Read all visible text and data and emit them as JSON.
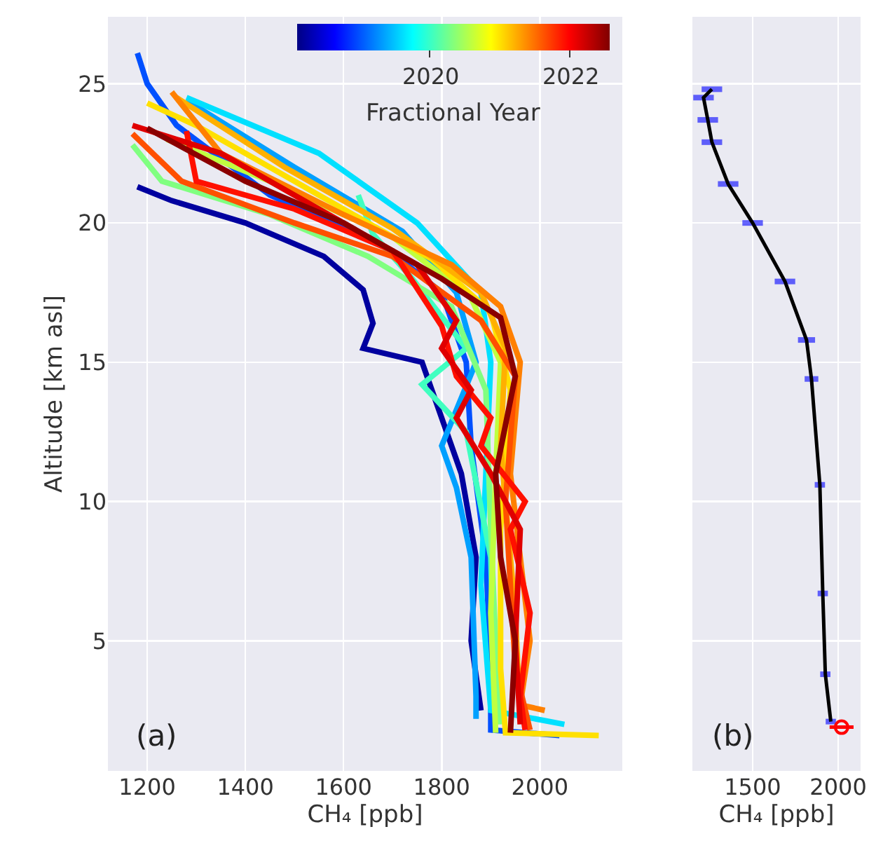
{
  "chart_data": [
    {
      "type": "line",
      "xlabel": "CH₄ [ppb]",
      "ylabel": "Altitude [km asl]",
      "xlim": [
        1120,
        2168
      ],
      "xticks": [
        1200,
        1400,
        1600,
        1800,
        2000
      ],
      "ylim": [
        0.33,
        27.4
      ],
      "yticks": [
        5,
        10,
        15,
        20,
        25
      ],
      "grid": true,
      "annotations": [
        "(a)",
        "2020",
        "2022",
        "Fractional Year"
      ],
      "series": [
        {
          "color": "#00009f",
          "x": [
            1180,
            1250,
            1400,
            1560,
            1640,
            1660,
            1640,
            1760,
            1780,
            1840,
            1870,
            1860,
            1880
          ],
          "values": [
            21.3,
            20.8,
            20.0,
            18.8,
            17.6,
            16.4,
            15.5,
            15.0,
            14,
            11,
            8,
            5,
            2.5
          ]
        },
        {
          "color": "#0050ff",
          "x": [
            1180,
            1200,
            1260,
            1450,
            1680,
            1800,
            1850,
            1860,
            1890,
            1900,
            1900,
            2040
          ],
          "values": [
            26.1,
            25,
            23.5,
            21,
            19.2,
            17.5,
            15,
            12,
            8,
            4,
            1.8,
            1.6
          ]
        },
        {
          "color": "#00a0ff",
          "x": [
            1280,
            1500,
            1720,
            1830,
            1870,
            1800,
            1830,
            1860,
            1870,
            1870
          ],
          "values": [
            24.4,
            22,
            19.7,
            17.5,
            15,
            12,
            10.5,
            8,
            3,
            2.2
          ]
        },
        {
          "color": "#00e0ff",
          "x": [
            1280,
            1550,
            1750,
            1880,
            1900,
            1890,
            1880,
            1900,
            2050
          ],
          "values": [
            24.5,
            22.5,
            20,
            17.5,
            15,
            11,
            7,
            2.5,
            2
          ]
        },
        {
          "color": "#40ffc0",
          "x": [
            1630,
            1660,
            1740,
            1850,
            1760,
            1850,
            1900,
            1910
          ],
          "values": [
            21,
            19.6,
            18,
            15.5,
            14.2,
            12.5,
            8,
            2
          ]
        },
        {
          "color": "#80ff80",
          "x": [
            1170,
            1230,
            1450,
            1650,
            1820,
            1890,
            1900,
            1910,
            1920
          ],
          "values": [
            22.8,
            21.5,
            20.3,
            18.8,
            17,
            14,
            9,
            5,
            2
          ]
        },
        {
          "color": "#c0ff40",
          "x": [
            1240,
            1450,
            1700,
            1860,
            1920,
            1910,
            1900,
            1910
          ],
          "values": [
            23,
            21.5,
            19.5,
            17.3,
            15,
            11,
            6,
            1.7
          ]
        },
        {
          "color": "#ffe000",
          "x": [
            1200,
            1300,
            1550,
            1780,
            1900,
            1940,
            1920,
            1920,
            1930,
            2120
          ],
          "values": [
            24.3,
            23.5,
            21,
            18.7,
            16.8,
            14,
            9,
            4,
            1.7,
            1.6
          ]
        },
        {
          "color": "#ffb000",
          "x": [
            1260,
            1480,
            1700,
            1880,
            1930,
            1920,
            1950,
            1960
          ],
          "values": [
            24.5,
            22,
            19.8,
            17.5,
            15.5,
            12,
            6,
            2.2
          ]
        },
        {
          "color": "#ff8000",
          "x": [
            1250,
            1350,
            1600,
            1820,
            1920,
            1960,
            1940,
            1980,
            1960,
            2010
          ],
          "values": [
            24.7,
            22.5,
            20.3,
            18.5,
            17,
            15,
            11,
            5,
            2.7,
            2.5
          ]
        },
        {
          "color": "#ff5000",
          "x": [
            1170,
            1270,
            1500,
            1700,
            1880,
            1950,
            1930,
            1950,
            1980
          ],
          "values": [
            23.2,
            21.5,
            20,
            18.8,
            16.5,
            14.5,
            10,
            4,
            1.8
          ]
        },
        {
          "color": "#ff1000",
          "x": [
            1280,
            1300,
            1500,
            1700,
            1800,
            1830,
            1900,
            1880,
            1970,
            1940,
            1980,
            1960,
            1970
          ],
          "values": [
            23.3,
            21.5,
            20.5,
            19,
            16.3,
            14.5,
            13,
            12,
            10,
            9,
            6,
            3,
            1.8
          ]
        },
        {
          "color": "#e00000",
          "x": [
            1170,
            1350,
            1500,
            1750,
            1830,
            1800,
            1860,
            1830,
            1900,
            1960,
            1950,
            1960
          ],
          "values": [
            23.5,
            22.5,
            21,
            18.5,
            16.5,
            15.5,
            14,
            13,
            11,
            9,
            5,
            2
          ]
        },
        {
          "color": "#8b0000",
          "x": [
            1200,
            1400,
            1600,
            1800,
            1920,
            1950,
            1910,
            1920,
            1950,
            1940
          ],
          "values": [
            23.4,
            21.5,
            20,
            18,
            16.6,
            14.5,
            11,
            8,
            5,
            1.7
          ]
        }
      ]
    },
    {
      "type": "line",
      "xlabel": "CH₄ [ppb]",
      "xlim": [
        1148,
        2131
      ],
      "xticks": [
        1500,
        2000
      ],
      "ylim": [
        0.33,
        27.4
      ],
      "yticks": [
        5,
        10,
        15,
        20,
        25
      ],
      "tick_labels": "x",
      "grid": true,
      "annotations": [
        "(b)"
      ],
      "series": [
        {
          "color": "#000000",
          "x": [
            1262,
            1213,
            1238,
            1262,
            1357,
            1500,
            1689,
            1815,
            1844,
            1893,
            1910,
            1925,
            1957
          ],
          "values": [
            24.8,
            24.5,
            23.7,
            22.9,
            21.4,
            20.0,
            17.9,
            15.8,
            14.4,
            10.6,
            6.7,
            3.8,
            2.1
          ],
          "xerrors": [
            60,
            60,
            60,
            60,
            60,
            60,
            60,
            50,
            40,
            30,
            30,
            30,
            30
          ]
        },
        {
          "type": "scatter",
          "color": "#ff0000",
          "marker": "circle",
          "x": [
            2020
          ],
          "values": [
            1.9
          ],
          "xerrors": [
            70
          ]
        }
      ]
    }
  ]
}
